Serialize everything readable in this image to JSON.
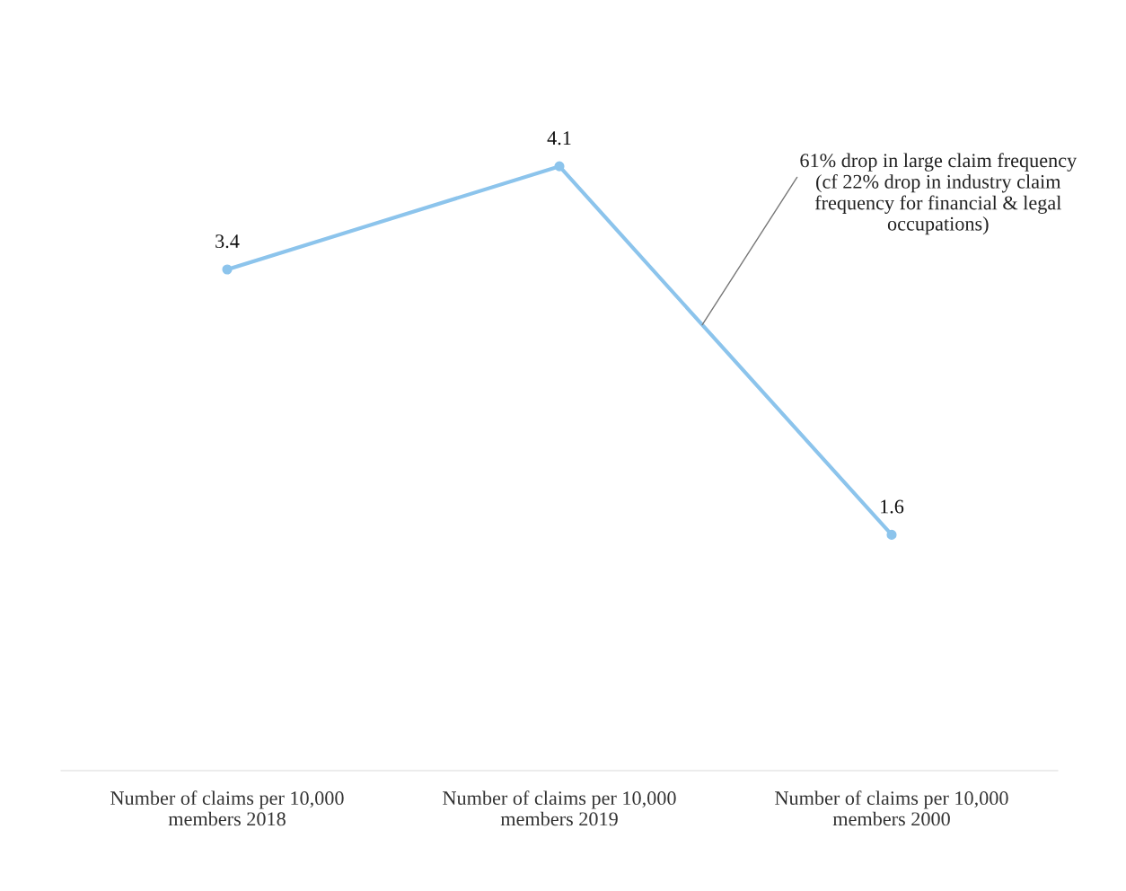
{
  "chart_data": {
    "type": "line",
    "categories": [
      "Number of claims per 10,000\nmembers 2018",
      "Number of claims per 10,000\nmembers 2019",
      "Number of claims per 10,000\nmembers 2000"
    ],
    "series": [
      {
        "color": "#8cc4ec",
        "values": [
          3.4,
          4.1,
          1.6
        ]
      }
    ],
    "data_labels": true,
    "marker": "circle",
    "line_style": "solid",
    "grid": false,
    "legend": false,
    "annotations": [
      "61% drop in large claim frequency\n(cf 22% drop in industry claim\nfrequency for financial & legal\noccupations)"
    ]
  }
}
